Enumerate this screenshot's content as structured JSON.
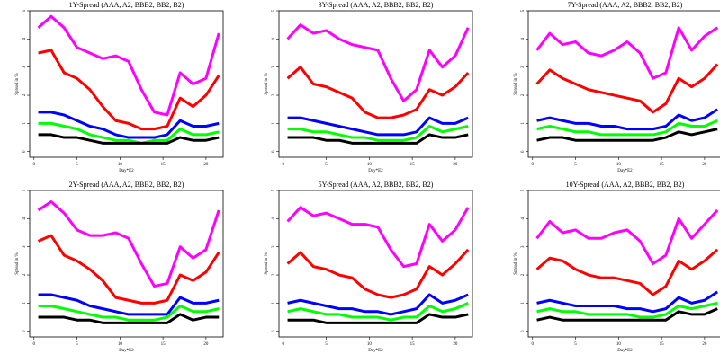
{
  "chart_data": [
    {
      "type": "line",
      "title": "1Y-Spread (AAA, A2, BBB2, BB2, B2)",
      "x_label": "Day*E2",
      "y_label": "Spread in %",
      "x": [
        0.5,
        2,
        3.5,
        5,
        6.5,
        8,
        9.5,
        11,
        12.5,
        14,
        15.5,
        17,
        18.5,
        20,
        21.5
      ],
      "xlim": [
        -0.5,
        22
      ],
      "xticks": [
        0,
        5,
        10,
        15,
        20
      ],
      "ylim": [
        -0.2,
        5
      ],
      "yticks": [
        0,
        1,
        2,
        3,
        4,
        5
      ],
      "series": [
        {
          "color": "#ff00ff",
          "values": [
            4.4,
            4.8,
            4.4,
            3.7,
            3.5,
            3.3,
            3.4,
            3.2,
            2.2,
            1.4,
            1.3,
            2.8,
            2.4,
            2.6,
            4.2
          ]
        },
        {
          "color": "#ff0000",
          "values": [
            3.5,
            3.6,
            2.8,
            2.6,
            2.2,
            1.6,
            1.1,
            1.0,
            0.8,
            0.8,
            0.9,
            1.9,
            1.6,
            2.0,
            2.7
          ]
        },
        {
          "color": "#0000ff",
          "values": [
            1.4,
            1.4,
            1.3,
            1.1,
            0.9,
            0.8,
            0.6,
            0.5,
            0.5,
            0.5,
            0.6,
            1.1,
            0.9,
            0.9,
            1.0
          ]
        },
        {
          "color": "#00ff00",
          "values": [
            1.0,
            1.0,
            0.9,
            0.8,
            0.6,
            0.5,
            0.4,
            0.4,
            0.3,
            0.4,
            0.4,
            0.8,
            0.6,
            0.6,
            0.7
          ]
        },
        {
          "color": "#000000",
          "values": [
            0.6,
            0.6,
            0.5,
            0.5,
            0.4,
            0.3,
            0.3,
            0.3,
            0.3,
            0.3,
            0.3,
            0.5,
            0.4,
            0.4,
            0.5
          ]
        }
      ]
    },
    {
      "type": "line",
      "title": "3Y-Spread (AAA, A2, BBB2, BB2, B2)",
      "x_label": "Day*E2",
      "y_label": "Spread in %",
      "x": [
        0.5,
        2,
        3.5,
        5,
        6.5,
        8,
        9.5,
        11,
        12.5,
        14,
        15.5,
        17,
        18.5,
        20,
        21.5
      ],
      "xlim": [
        -0.5,
        22
      ],
      "xticks": [
        0,
        5,
        10,
        15,
        20
      ],
      "ylim": [
        -0.2,
        5
      ],
      "yticks": [
        0,
        1,
        2,
        3,
        4,
        5
      ],
      "series": [
        {
          "color": "#ff00ff",
          "values": [
            4.0,
            4.5,
            4.2,
            4.3,
            4.0,
            3.8,
            3.7,
            3.6,
            2.6,
            1.8,
            2.2,
            3.6,
            3.0,
            3.4,
            4.4
          ]
        },
        {
          "color": "#ff0000",
          "values": [
            2.6,
            3.0,
            2.4,
            2.3,
            2.1,
            1.9,
            1.4,
            1.2,
            1.2,
            1.3,
            1.5,
            2.2,
            2.0,
            2.3,
            2.8
          ]
        },
        {
          "color": "#0000ff",
          "values": [
            1.2,
            1.2,
            1.1,
            1.0,
            0.9,
            0.8,
            0.7,
            0.6,
            0.6,
            0.6,
            0.7,
            1.2,
            1.0,
            1.0,
            1.2
          ]
        },
        {
          "color": "#00ff00",
          "values": [
            0.8,
            0.8,
            0.7,
            0.7,
            0.6,
            0.5,
            0.5,
            0.4,
            0.4,
            0.4,
            0.5,
            0.9,
            0.7,
            0.8,
            0.9
          ]
        },
        {
          "color": "#000000",
          "values": [
            0.5,
            0.5,
            0.5,
            0.4,
            0.4,
            0.3,
            0.3,
            0.3,
            0.3,
            0.3,
            0.3,
            0.6,
            0.5,
            0.5,
            0.6
          ]
        }
      ]
    },
    {
      "type": "line",
      "title": "7Y-Spread (AAA, A2, BBB2, BB2, B2)",
      "x_label": "Day*E2",
      "y_label": "Spread in %",
      "x": [
        0.5,
        2,
        3.5,
        5,
        6.5,
        8,
        9.5,
        11,
        12.5,
        14,
        15.5,
        17,
        18.5,
        20,
        21.5
      ],
      "xlim": [
        -0.5,
        22
      ],
      "xticks": [
        0,
        5,
        10,
        15,
        20
      ],
      "ylim": [
        -0.2,
        5
      ],
      "yticks": [
        0,
        1,
        2,
        3,
        4,
        5
      ],
      "series": [
        {
          "color": "#ff00ff",
          "values": [
            3.6,
            4.2,
            3.8,
            3.9,
            3.5,
            3.4,
            3.6,
            3.9,
            3.5,
            2.6,
            2.8,
            4.4,
            3.6,
            4.1,
            4.4
          ]
        },
        {
          "color": "#ff0000",
          "values": [
            2.4,
            2.9,
            2.6,
            2.4,
            2.2,
            2.1,
            2.0,
            1.9,
            1.8,
            1.4,
            1.7,
            2.6,
            2.3,
            2.6,
            3.1
          ]
        },
        {
          "color": "#0000ff",
          "values": [
            1.1,
            1.2,
            1.1,
            1.0,
            1.0,
            0.9,
            0.9,
            0.8,
            0.8,
            0.8,
            0.9,
            1.3,
            1.1,
            1.2,
            1.5
          ]
        },
        {
          "color": "#00ff00",
          "values": [
            0.8,
            0.9,
            0.8,
            0.7,
            0.7,
            0.6,
            0.6,
            0.6,
            0.6,
            0.6,
            0.7,
            1.0,
            0.9,
            0.9,
            1.1
          ]
        },
        {
          "color": "#000000",
          "values": [
            0.4,
            0.5,
            0.5,
            0.4,
            0.4,
            0.4,
            0.4,
            0.4,
            0.4,
            0.4,
            0.5,
            0.7,
            0.6,
            0.7,
            0.8
          ]
        }
      ]
    },
    {
      "type": "line",
      "title": "2Y-Spread (AAA, A2, BBB2, BB2, B2)",
      "x_label": "Day*E2",
      "y_label": "Spread in %",
      "x": [
        0.5,
        2,
        3.5,
        5,
        6.5,
        8,
        9.5,
        11,
        12.5,
        14,
        15.5,
        17,
        18.5,
        20,
        21.5
      ],
      "xlim": [
        -0.5,
        22
      ],
      "xticks": [
        0,
        5,
        10,
        15,
        20
      ],
      "ylim": [
        -0.2,
        5
      ],
      "yticks": [
        0,
        1,
        2,
        3,
        4,
        5
      ],
      "series": [
        {
          "color": "#ff00ff",
          "values": [
            4.3,
            4.6,
            4.2,
            3.6,
            3.4,
            3.4,
            3.5,
            3.3,
            2.4,
            1.6,
            1.7,
            3.0,
            2.6,
            2.9,
            4.3
          ]
        },
        {
          "color": "#ff0000",
          "values": [
            3.2,
            3.4,
            2.7,
            2.5,
            2.2,
            1.8,
            1.2,
            1.1,
            1.0,
            1.0,
            1.1,
            2.0,
            1.8,
            2.1,
            2.8
          ]
        },
        {
          "color": "#0000ff",
          "values": [
            1.3,
            1.3,
            1.2,
            1.1,
            0.9,
            0.8,
            0.7,
            0.6,
            0.6,
            0.6,
            0.6,
            1.2,
            1.0,
            1.0,
            1.1
          ]
        },
        {
          "color": "#00ff00",
          "values": [
            0.9,
            0.9,
            0.8,
            0.7,
            0.6,
            0.5,
            0.5,
            0.4,
            0.4,
            0.4,
            0.5,
            0.9,
            0.7,
            0.7,
            0.8
          ]
        },
        {
          "color": "#000000",
          "values": [
            0.5,
            0.5,
            0.5,
            0.4,
            0.4,
            0.3,
            0.3,
            0.3,
            0.3,
            0.3,
            0.3,
            0.6,
            0.4,
            0.5,
            0.5
          ]
        }
      ]
    },
    {
      "type": "line",
      "title": "5Y-Spread (AAA, A2, BBB2, BB2, B2)",
      "x_label": "Day*E2",
      "y_label": "Spread in %",
      "x": [
        0.5,
        2,
        3.5,
        5,
        6.5,
        8,
        9.5,
        11,
        12.5,
        14,
        15.5,
        17,
        18.5,
        20,
        21.5
      ],
      "xlim": [
        -0.5,
        22
      ],
      "xticks": [
        0,
        5,
        10,
        15,
        20
      ],
      "ylim": [
        -0.2,
        5
      ],
      "yticks": [
        0,
        1,
        2,
        3,
        4,
        5
      ],
      "series": [
        {
          "color": "#ff00ff",
          "values": [
            3.9,
            4.4,
            4.1,
            4.2,
            4.0,
            3.8,
            3.8,
            3.7,
            2.9,
            2.3,
            2.4,
            3.8,
            3.2,
            3.6,
            4.4
          ]
        },
        {
          "color": "#ff0000",
          "values": [
            2.4,
            2.8,
            2.3,
            2.2,
            2.0,
            1.9,
            1.5,
            1.3,
            1.2,
            1.3,
            1.5,
            2.3,
            2.0,
            2.4,
            2.9
          ]
        },
        {
          "color": "#0000ff",
          "values": [
            1.0,
            1.1,
            1.0,
            0.9,
            0.8,
            0.8,
            0.7,
            0.7,
            0.6,
            0.7,
            0.8,
            1.3,
            1.0,
            1.1,
            1.3
          ]
        },
        {
          "color": "#00ff00",
          "values": [
            0.7,
            0.8,
            0.7,
            0.6,
            0.6,
            0.5,
            0.5,
            0.5,
            0.4,
            0.5,
            0.5,
            0.9,
            0.7,
            0.8,
            1.0
          ]
        },
        {
          "color": "#000000",
          "values": [
            0.4,
            0.4,
            0.4,
            0.3,
            0.3,
            0.3,
            0.3,
            0.3,
            0.3,
            0.3,
            0.3,
            0.6,
            0.5,
            0.5,
            0.6
          ]
        }
      ]
    },
    {
      "type": "line",
      "title": "10Y-Spread (AAA, A2, BBB2, BB2, B2)",
      "x_label": "Day*E2",
      "y_label": "Spread in %",
      "x": [
        0.5,
        2,
        3.5,
        5,
        6.5,
        8,
        9.5,
        11,
        12.5,
        14,
        15.5,
        17,
        18.5,
        20,
        21.5
      ],
      "xlim": [
        -0.5,
        22
      ],
      "xticks": [
        0,
        5,
        10,
        15,
        20
      ],
      "ylim": [
        -0.2,
        5
      ],
      "yticks": [
        0,
        1,
        2,
        3,
        4,
        5
      ],
      "series": [
        {
          "color": "#ff00ff",
          "values": [
            3.3,
            3.9,
            3.5,
            3.6,
            3.3,
            3.3,
            3.5,
            3.6,
            3.2,
            2.4,
            2.7,
            4.0,
            3.3,
            3.8,
            4.3
          ]
        },
        {
          "color": "#ff0000",
          "values": [
            2.2,
            2.6,
            2.5,
            2.2,
            2.0,
            1.9,
            1.9,
            1.8,
            1.7,
            1.3,
            1.6,
            2.5,
            2.2,
            2.5,
            2.9
          ]
        },
        {
          "color": "#0000ff",
          "values": [
            1.0,
            1.1,
            1.0,
            0.9,
            0.9,
            0.9,
            0.9,
            0.8,
            0.8,
            0.7,
            0.8,
            1.2,
            1.0,
            1.1,
            1.4
          ]
        },
        {
          "color": "#00ff00",
          "values": [
            0.7,
            0.8,
            0.7,
            0.7,
            0.6,
            0.6,
            0.6,
            0.6,
            0.5,
            0.5,
            0.6,
            0.9,
            0.8,
            0.9,
            1.0
          ]
        },
        {
          "color": "#000000",
          "values": [
            0.4,
            0.5,
            0.4,
            0.4,
            0.4,
            0.4,
            0.4,
            0.4,
            0.4,
            0.4,
            0.4,
            0.7,
            0.6,
            0.6,
            0.8
          ]
        }
      ]
    }
  ]
}
